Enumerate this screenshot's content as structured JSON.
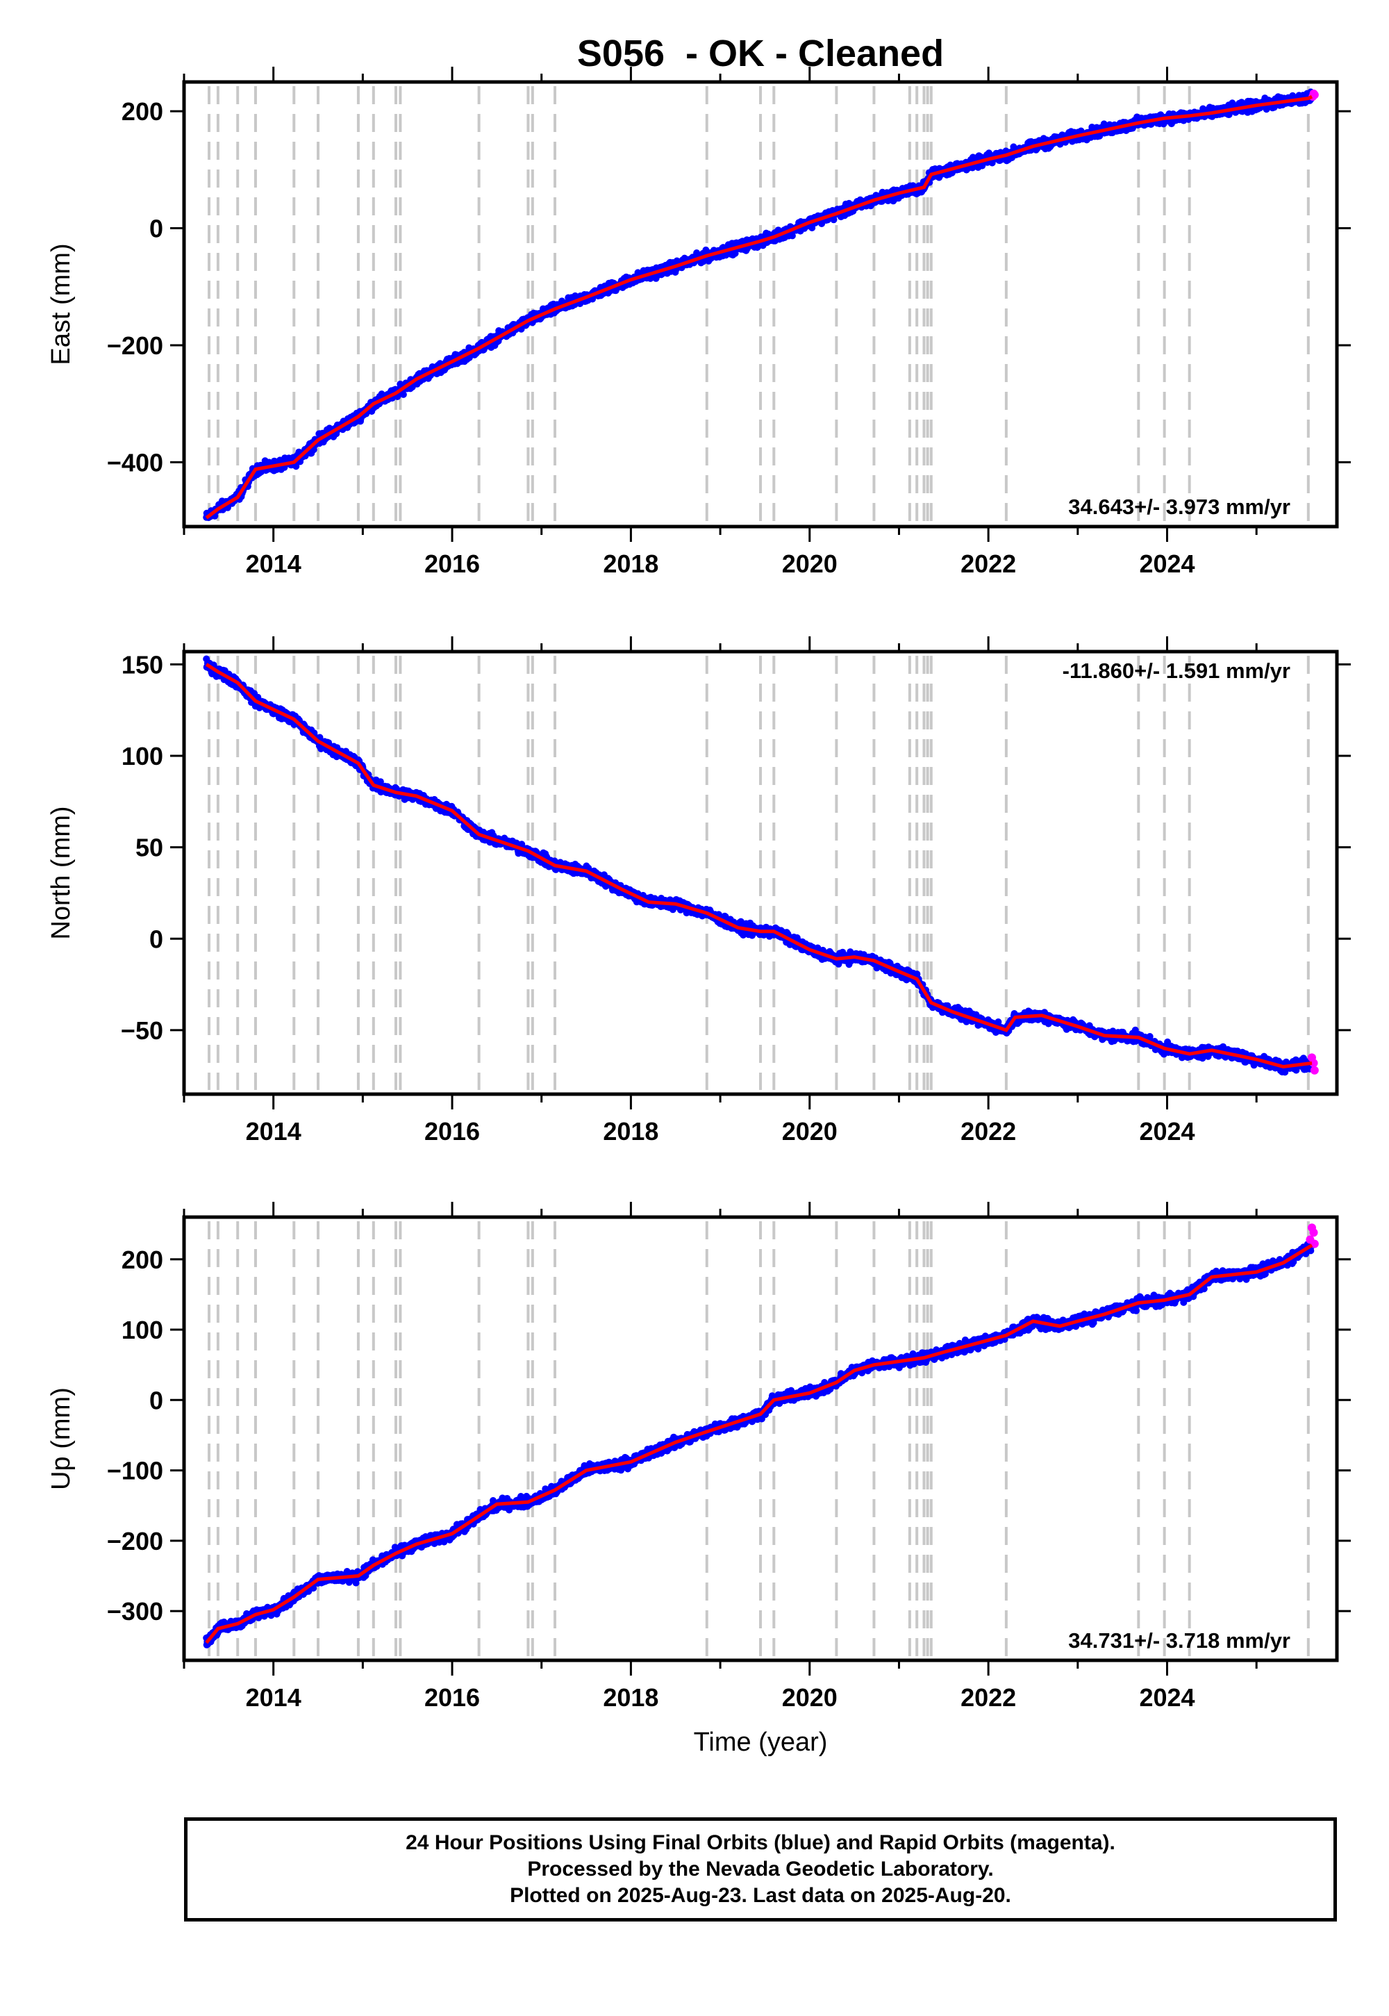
{
  "title": "S056  - OK - Cleaned",
  "colors": {
    "final_orbits": "#0000ff",
    "rapid_orbits": "#ff00ff",
    "model": "#ff0000",
    "event_lines": "#c8c8c8",
    "frame": "#000000"
  },
  "event_years": [
    2013.28,
    2013.38,
    2013.6,
    2013.8,
    2014.23,
    2014.5,
    2014.95,
    2015.12,
    2015.37,
    2015.42,
    2016.3,
    2016.85,
    2016.9,
    2017.15,
    2018.85,
    2019.45,
    2019.6,
    2020.3,
    2020.72,
    2021.12,
    2021.2,
    2021.28,
    2021.32,
    2021.36,
    2022.2,
    2023.68,
    2023.97,
    2024.25,
    2025.58
  ],
  "footer": {
    "line1": "24 Hour Positions Using Final Orbits (blue) and Rapid Orbits (magenta).",
    "line2": "Processed by the Nevada Geodetic Laboratory.",
    "line3": "Plotted on 2025-Aug-23. Last data on 2025-Aug-20."
  },
  "chart_data": [
    {
      "type": "scatter",
      "ylabel": "East (mm)",
      "xlabel": "",
      "rate": "34.643+/- 3.973 mm/yr",
      "rate_position": "bottom-right",
      "xlim": [
        2013.0,
        2025.9
      ],
      "ylim": [
        -510,
        250
      ],
      "xticks": [
        2014,
        2016,
        2018,
        2020,
        2022,
        2024
      ],
      "yticks": [
        -400,
        -200,
        0,
        200
      ],
      "series": [
        {
          "x": [
            2013.25,
            2013.38,
            2013.6,
            2013.8,
            2014.23,
            2014.5,
            2014.95,
            2015.12,
            2015.37,
            2015.6,
            2016.0,
            2016.3,
            2016.85,
            2017.15,
            2017.5,
            2018.0,
            2018.5,
            2018.85,
            2019.45,
            2019.6,
            2020.0,
            2020.3,
            2020.72,
            2021.0,
            2021.28,
            2021.36,
            2022.0,
            2022.2,
            2022.5,
            2023.0,
            2023.68,
            2023.97,
            2024.25,
            2024.5,
            2025.0,
            2025.58,
            2025.62
          ],
          "y": [
            -495,
            -480,
            -460,
            -412,
            -400,
            -362,
            -322,
            -300,
            -282,
            -258,
            -228,
            -205,
            -158,
            -138,
            -118,
            -88,
            -65,
            -47,
            -22,
            -15,
            10,
            25,
            48,
            60,
            70,
            92,
            118,
            125,
            140,
            158,
            180,
            188,
            192,
            197,
            210,
            222,
            225
          ]
        }
      ],
      "rapid": {
        "x": [
          2025.63,
          2025.64,
          2025.65
        ],
        "y": [
          225,
          230,
          228
        ]
      }
    },
    {
      "type": "scatter",
      "ylabel": "North (mm)",
      "xlabel": "",
      "rate": "-11.860+/- 1.591 mm/yr",
      "rate_position": "top-right",
      "xlim": [
        2013.0,
        2025.9
      ],
      "ylim": [
        -85,
        157
      ],
      "xticks": [
        2014,
        2016,
        2018,
        2020,
        2022,
        2024
      ],
      "yticks": [
        -50,
        0,
        50,
        100,
        150
      ],
      "series": [
        {
          "x": [
            2013.25,
            2013.38,
            2013.6,
            2013.8,
            2014.23,
            2014.5,
            2014.95,
            2015.12,
            2015.37,
            2015.6,
            2016.0,
            2016.3,
            2016.85,
            2017.15,
            2017.5,
            2017.9,
            2018.2,
            2018.5,
            2018.85,
            2019.2,
            2019.45,
            2019.6,
            2020.0,
            2020.3,
            2020.5,
            2020.72,
            2021.0,
            2021.2,
            2021.36,
            2021.6,
            2022.2,
            2022.3,
            2022.6,
            2023.0,
            2023.3,
            2023.68,
            2023.97,
            2024.25,
            2024.5,
            2025.0,
            2025.3,
            2025.62
          ],
          "y": [
            150,
            146,
            140,
            130,
            120,
            108,
            96,
            84,
            80,
            78,
            70,
            57,
            48,
            40,
            37,
            27,
            20,
            19,
            14,
            6,
            4,
            4,
            -6,
            -11,
            -10,
            -12,
            -18,
            -22,
            -35,
            -40,
            -50,
            -43,
            -42,
            -48,
            -53,
            -54,
            -60,
            -63,
            -61,
            -66,
            -70,
            -68
          ]
        }
      ],
      "rapid": {
        "x": [
          2025.62,
          2025.64,
          2025.65
        ],
        "y": [
          -65,
          -68,
          -72
        ]
      }
    },
    {
      "type": "scatter",
      "ylabel": "Up (mm)",
      "xlabel": "Time (year)",
      "rate": "34.731+/- 3.718 mm/yr",
      "rate_position": "bottom-right",
      "xlim": [
        2013.0,
        2025.9
      ],
      "ylim": [
        -370,
        260
      ],
      "xticks": [
        2014,
        2016,
        2018,
        2020,
        2022,
        2024
      ],
      "yticks": [
        -300,
        -200,
        -100,
        0,
        100,
        200
      ],
      "series": [
        {
          "x": [
            2013.25,
            2013.38,
            2013.6,
            2013.8,
            2014.0,
            2014.23,
            2014.5,
            2014.95,
            2015.12,
            2015.37,
            2015.6,
            2016.0,
            2016.3,
            2016.5,
            2016.85,
            2017.15,
            2017.5,
            2018.0,
            2018.5,
            2018.85,
            2019.45,
            2019.6,
            2020.0,
            2020.3,
            2020.5,
            2020.72,
            2021.0,
            2021.28,
            2021.5,
            2022.0,
            2022.2,
            2022.5,
            2022.8,
            2023.0,
            2023.3,
            2023.68,
            2023.97,
            2024.25,
            2024.5,
            2025.0,
            2025.3,
            2025.62
          ],
          "y": [
            -345,
            -325,
            -318,
            -305,
            -298,
            -280,
            -255,
            -250,
            -235,
            -218,
            -205,
            -190,
            -165,
            -148,
            -145,
            -128,
            -100,
            -88,
            -60,
            -45,
            -20,
            0,
            10,
            25,
            42,
            50,
            55,
            60,
            68,
            85,
            92,
            112,
            105,
            112,
            122,
            138,
            142,
            150,
            175,
            182,
            195,
            220
          ]
        }
      ],
      "rapid": {
        "x": [
          2025.6,
          2025.62,
          2025.64,
          2025.65
        ],
        "y": [
          228,
          245,
          238,
          222
        ]
      }
    }
  ]
}
